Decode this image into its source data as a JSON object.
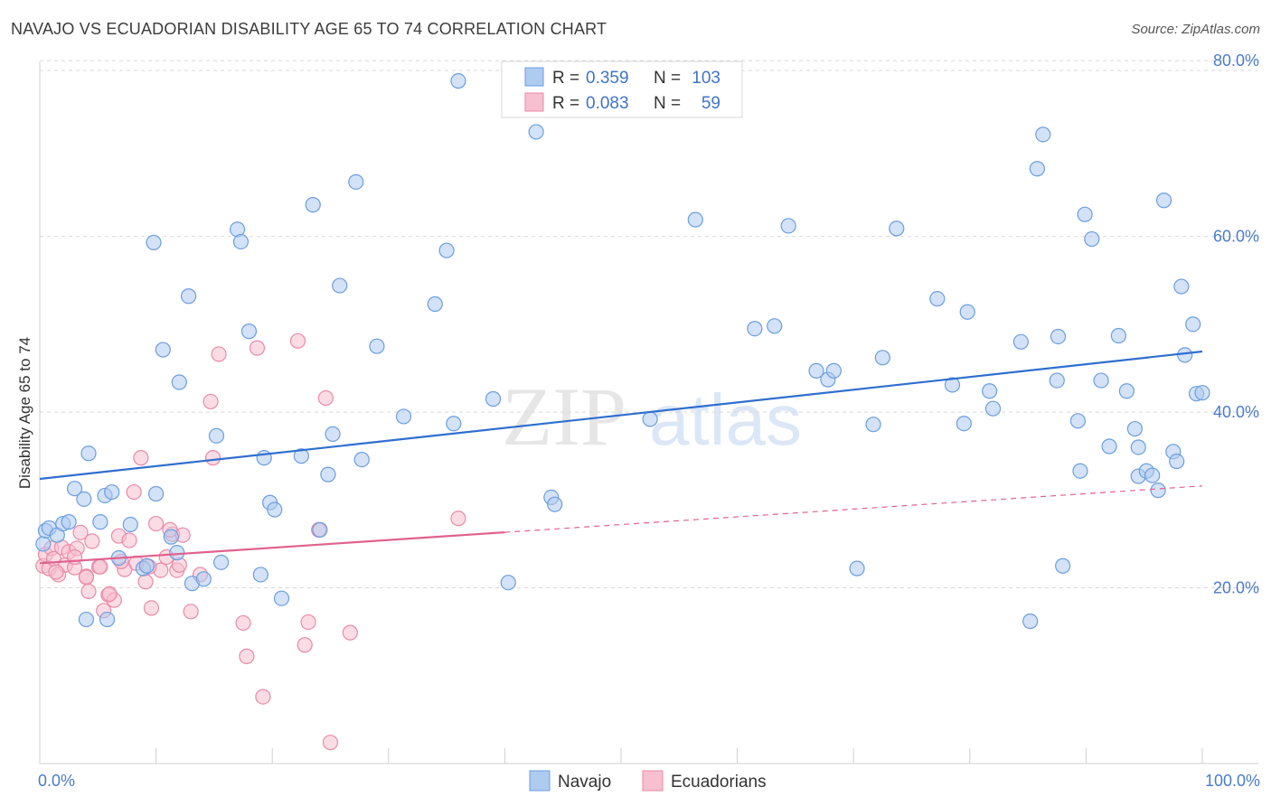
{
  "title": "NAVAJO VS ECUADORIAN DISABILITY AGE 65 TO 74 CORRELATION CHART",
  "source": "Source: ZipAtlas.com",
  "watermark": {
    "zip": "ZIP",
    "atlas": "atlas"
  },
  "colors": {
    "navajo_fill": "#aecbf0",
    "navajo_stroke": "#6b9ee0",
    "navajo_line": "#2f6fcf",
    "ecuadorian_fill": "#f7bfd0",
    "ecuadorian_stroke": "#e98aa9",
    "ecuadorian_line": "#e0628e",
    "grid": "#d9d9d9",
    "tick_text": "#4a7cc9"
  },
  "legend_top": {
    "rows": [
      {
        "r_label": "R =",
        "r_value": "0.359",
        "n_label": "N =",
        "n_value": "103"
      },
      {
        "r_label": "R =",
        "r_value": "0.083",
        "n_label": "N =",
        "n_value": "59"
      }
    ]
  },
  "legend_bottom": {
    "navajo": "Navajo",
    "ecuadorians": "Ecuadorians"
  },
  "chart_data": {
    "type": "scatter",
    "title": "NAVAJO VS ECUADORIAN DISABILITY AGE 65 TO 74 CORRELATION CHART",
    "xlabel": "",
    "ylabel": "Disability Age 65 to 74",
    "xlim": [
      0,
      100
    ],
    "ylim": [
      0,
      83
    ],
    "x_tick_labels": [
      "0.0%",
      "100.0%"
    ],
    "y_ticks": [
      20,
      40,
      60,
      80
    ],
    "y_tick_labels": [
      "20.0%",
      "40.0%",
      "60.0%",
      "80.0%"
    ],
    "series": [
      {
        "name": "Navajo",
        "r": 0.359,
        "n": 103,
        "trend": {
          "x0": 0,
          "y0": 32.4,
          "x1": 100,
          "y1": 46.9,
          "dash_from": null
        },
        "points": [
          [
            0.3,
            25
          ],
          [
            0.5,
            26.5
          ],
          [
            0.8,
            26.8
          ],
          [
            1.5,
            26
          ],
          [
            2,
            27.3
          ],
          [
            2.5,
            27.5
          ],
          [
            3,
            31.3
          ],
          [
            3.8,
            30.1
          ],
          [
            4,
            16.4
          ],
          [
            4.2,
            35.3
          ],
          [
            5.2,
            27.5
          ],
          [
            5.6,
            30.5
          ],
          [
            5.8,
            16.4
          ],
          [
            6.2,
            30.9
          ],
          [
            6.8,
            23.4
          ],
          [
            7.8,
            27.2
          ],
          [
            8.9,
            22.2
          ],
          [
            9.2,
            22.5
          ],
          [
            9.8,
            59.3
          ],
          [
            10,
            30.7
          ],
          [
            10.6,
            47.1
          ],
          [
            11.3,
            25.8
          ],
          [
            11.8,
            24
          ],
          [
            12,
            43.4
          ],
          [
            12.8,
            53.2
          ],
          [
            13.1,
            20.5
          ],
          [
            14.1,
            21
          ],
          [
            15.2,
            37.3
          ],
          [
            15.6,
            22.9
          ],
          [
            17,
            60.8
          ],
          [
            17.3,
            59.4
          ],
          [
            18,
            49.2
          ],
          [
            19,
            21.5
          ],
          [
            19.3,
            34.8
          ],
          [
            19.8,
            29.7
          ],
          [
            20.2,
            28.9
          ],
          [
            20.8,
            18.8
          ],
          [
            22.5,
            35
          ],
          [
            23.5,
            63.6
          ],
          [
            24.1,
            26.6
          ],
          [
            24.8,
            32.9
          ],
          [
            25.2,
            37.5
          ],
          [
            25.8,
            54.4
          ],
          [
            27.2,
            66.2
          ],
          [
            27.7,
            34.6
          ],
          [
            29,
            47.5
          ],
          [
            31.3,
            39.5
          ],
          [
            34,
            52.3
          ],
          [
            35,
            58.4
          ],
          [
            35.6,
            38.7
          ],
          [
            36,
            77.7
          ],
          [
            39,
            41.5
          ],
          [
            40.3,
            20.6
          ],
          [
            42.7,
            71.9
          ],
          [
            44,
            30.3
          ],
          [
            44.3,
            29.5
          ],
          [
            52.5,
            39.2
          ],
          [
            56.4,
            61.9
          ],
          [
            61.5,
            49.5
          ],
          [
            63.2,
            49.8
          ],
          [
            64.4,
            61.2
          ],
          [
            66.8,
            44.7
          ],
          [
            67.8,
            43.7
          ],
          [
            68.3,
            44.7
          ],
          [
            70.3,
            22.2
          ],
          [
            71.7,
            38.6
          ],
          [
            72.5,
            46.2
          ],
          [
            73.7,
            60.9
          ],
          [
            77.2,
            52.9
          ],
          [
            78.5,
            43.1
          ],
          [
            79.5,
            38.7
          ],
          [
            79.8,
            51.4
          ],
          [
            81.7,
            42.4
          ],
          [
            82,
            40.4
          ],
          [
            84.4,
            48
          ],
          [
            85.2,
            16.2
          ],
          [
            85.8,
            67.7
          ],
          [
            86.3,
            71.6
          ],
          [
            87.5,
            43.6
          ],
          [
            87.6,
            48.6
          ],
          [
            88,
            22.5
          ],
          [
            89.5,
            33.3
          ],
          [
            89.3,
            39
          ],
          [
            89.9,
            62.5
          ],
          [
            90.5,
            59.7
          ],
          [
            91.3,
            43.6
          ],
          [
            92,
            36.1
          ],
          [
            92.8,
            48.7
          ],
          [
            93.5,
            42.4
          ],
          [
            94.5,
            32.7
          ],
          [
            94.2,
            38.1
          ],
          [
            94.5,
            36
          ],
          [
            95.2,
            33.3
          ],
          [
            95.7,
            32.8
          ],
          [
            96.2,
            31.1
          ],
          [
            96.7,
            64.1
          ],
          [
            97.5,
            35.5
          ],
          [
            97.8,
            34.4
          ],
          [
            98.2,
            54.3
          ],
          [
            98.5,
            46.5
          ],
          [
            99.2,
            50
          ],
          [
            99.5,
            42.1
          ],
          [
            100,
            42.2
          ]
        ]
      },
      {
        "name": "Ecuadorians",
        "r": 0.083,
        "n": 59,
        "trend": {
          "x0": 0,
          "y0": 22.8,
          "x1": 100,
          "y1": 31.6,
          "dash_from": 40
        },
        "points": [
          [
            0.3,
            22.5
          ],
          [
            0.5,
            23.8
          ],
          [
            0.8,
            22.2
          ],
          [
            1,
            24.5
          ],
          [
            1.2,
            23.3
          ],
          [
            1.6,
            21.5
          ],
          [
            1.9,
            24.6
          ],
          [
            2.2,
            22.6
          ],
          [
            2.5,
            24.1
          ],
          [
            3,
            22.3
          ],
          [
            3.2,
            24.5
          ],
          [
            3.5,
            26.3
          ],
          [
            4,
            21.3
          ],
          [
            4.2,
            19.6
          ],
          [
            4.5,
            25.3
          ],
          [
            5.1,
            22.4
          ],
          [
            5.5,
            17.4
          ],
          [
            5.9,
            19.2
          ],
          [
            6.4,
            18.6
          ],
          [
            6.8,
            25.9
          ],
          [
            7.3,
            22.1
          ],
          [
            7.7,
            25.4
          ],
          [
            8.1,
            30.9
          ],
          [
            8.3,
            22.8
          ],
          [
            8.7,
            34.8
          ],
          [
            9.1,
            20.7
          ],
          [
            9.6,
            17.7
          ],
          [
            10,
            27.3
          ],
          [
            10.4,
            22
          ],
          [
            10.9,
            23.5
          ],
          [
            11.4,
            26.1
          ],
          [
            11.8,
            22
          ],
          [
            12.3,
            26
          ],
          [
            13,
            17.3
          ],
          [
            13.8,
            21.5
          ],
          [
            14.7,
            41.2
          ],
          [
            14.9,
            34.8
          ],
          [
            15.4,
            46.6
          ],
          [
            17.5,
            16
          ],
          [
            17.8,
            12.2
          ],
          [
            18.7,
            47.3
          ],
          [
            19.2,
            7.6
          ],
          [
            22.2,
            48.1
          ],
          [
            22.8,
            13.5
          ],
          [
            23.1,
            16.1
          ],
          [
            24,
            26.6
          ],
          [
            24.6,
            41.6
          ],
          [
            25,
            2.4
          ],
          [
            26.7,
            14.9
          ],
          [
            36,
            27.9
          ],
          [
            4,
            21.2
          ],
          [
            6,
            19.3
          ],
          [
            7,
            23
          ],
          [
            3,
            23.5
          ],
          [
            1.4,
            21.8
          ],
          [
            12,
            22.6
          ],
          [
            9.4,
            22.4
          ],
          [
            5.2,
            22.4
          ],
          [
            11.2,
            26.6
          ]
        ]
      }
    ]
  }
}
